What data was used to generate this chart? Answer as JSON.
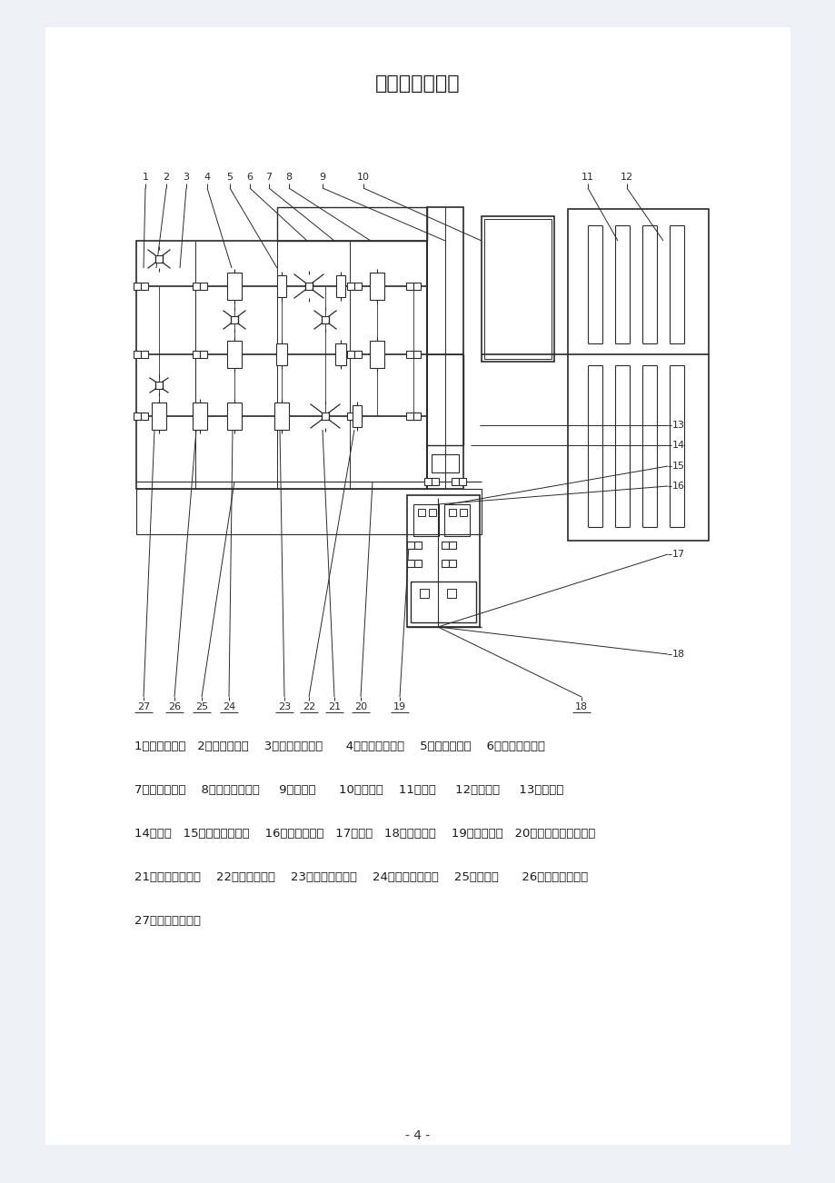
{
  "title": "工作原理示意图",
  "page_number": "- 4 -",
  "bg_color": "#edf1f5",
  "line_color": "#2a2a2a",
  "legend_lines": [
    "1、五档同步器   2、五档同步环    3、五档主动齿轮      4、四档主动齿轮    5、四档同步环    6、三四档同步器",
    "7、三档同步环    8、三档主动齿轮     9、输入轴      10、离合器    11、曲轴     12、发动机     13、惰轮轴",
    "14、惰轮   15、一档从动齿轮    16、一档同步环   17、半轴   18、半轴齿轮    19、行星齿轮   20、主减速器从动齿轮",
    "21、一二档同步器    22、二档同步环    23、二档从动齿轮    24、三档从动齿轮    25、输出轴      26、四档从动齿轮",
    "27、五档从动齿轮"
  ]
}
